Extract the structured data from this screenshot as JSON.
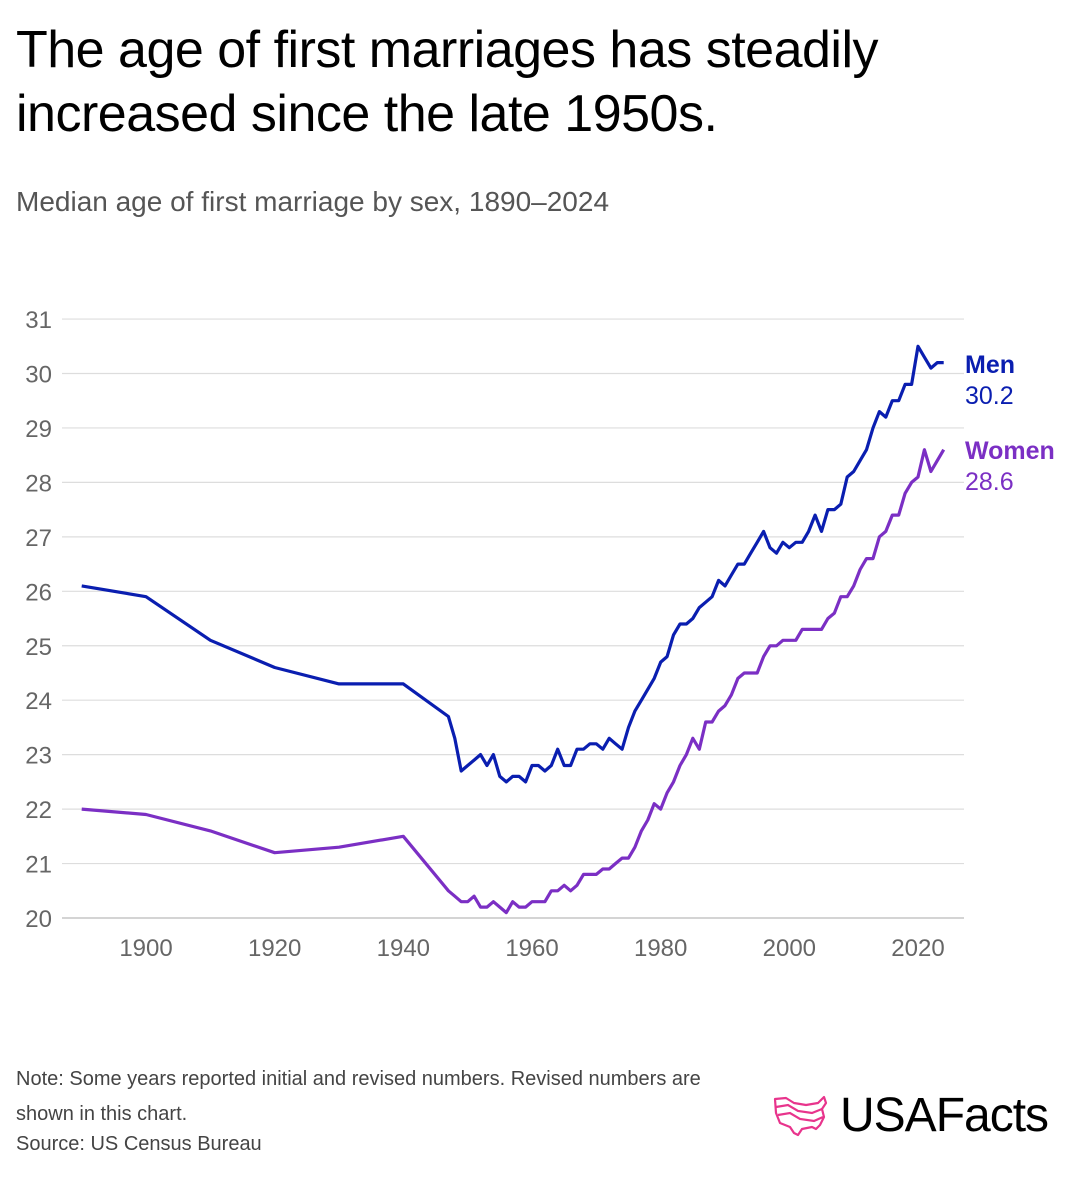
{
  "header": {
    "title": "The age of first marriages has steadily increased since the late 1950s.",
    "subtitle": "Median age of first marriage by sex, 1890–2024"
  },
  "footer": {
    "note": "Note: Some years reported initial and revised numbers. Revised numbers are shown in this chart.",
    "source": "Source: US Census Bureau",
    "logo_text": "USAFacts"
  },
  "colors": {
    "men": "#0a1eb0",
    "women": "#7b2fc4",
    "grid": "#dddddd",
    "logo_accent": "#e8348c"
  },
  "chart_data": {
    "type": "line",
    "title": "Median age of first marriage by sex, 1890–2024",
    "xlabel": "",
    "ylabel": "",
    "xlim": [
      1890,
      2024
    ],
    "ylim": [
      20,
      31
    ],
    "x_ticks": [
      1900,
      1920,
      1940,
      1960,
      1980,
      2000,
      2020
    ],
    "y_ticks": [
      20,
      21,
      22,
      23,
      24,
      25,
      26,
      27,
      28,
      29,
      30,
      31
    ],
    "grid": true,
    "legend": "end-of-line labels",
    "series": [
      {
        "name": "Men",
        "end_label": "30.2",
        "color": "#0a1eb0",
        "x": [
          1890,
          1900,
          1910,
          1920,
          1930,
          1940,
          1947,
          1948,
          1949,
          1950,
          1951,
          1952,
          1953,
          1954,
          1955,
          1956,
          1957,
          1958,
          1959,
          1960,
          1961,
          1962,
          1963,
          1964,
          1965,
          1966,
          1967,
          1968,
          1969,
          1970,
          1971,
          1972,
          1973,
          1974,
          1975,
          1976,
          1977,
          1978,
          1979,
          1980,
          1981,
          1982,
          1983,
          1984,
          1985,
          1986,
          1987,
          1988,
          1989,
          1990,
          1991,
          1992,
          1993,
          1994,
          1995,
          1996,
          1997,
          1998,
          1999,
          2000,
          2001,
          2002,
          2003,
          2004,
          2005,
          2006,
          2007,
          2008,
          2009,
          2010,
          2011,
          2012,
          2013,
          2014,
          2015,
          2016,
          2017,
          2018,
          2019,
          2020,
          2021,
          2022,
          2023,
          2024
        ],
        "values": [
          26.1,
          25.9,
          25.1,
          24.6,
          24.3,
          24.3,
          23.7,
          23.3,
          22.7,
          22.8,
          22.9,
          23.0,
          22.8,
          23.0,
          22.6,
          22.5,
          22.6,
          22.6,
          22.5,
          22.8,
          22.8,
          22.7,
          22.8,
          23.1,
          22.8,
          22.8,
          23.1,
          23.1,
          23.2,
          23.2,
          23.1,
          23.3,
          23.2,
          23.1,
          23.5,
          23.8,
          24.0,
          24.2,
          24.4,
          24.7,
          24.8,
          25.2,
          25.4,
          25.4,
          25.5,
          25.7,
          25.8,
          25.9,
          26.2,
          26.1,
          26.3,
          26.5,
          26.5,
          26.7,
          26.9,
          27.1,
          26.8,
          26.7,
          26.9,
          26.8,
          26.9,
          26.9,
          27.1,
          27.4,
          27.1,
          27.5,
          27.5,
          27.6,
          28.1,
          28.2,
          28.4,
          28.6,
          29.0,
          29.3,
          29.2,
          29.5,
          29.5,
          29.8,
          29.8,
          30.5,
          30.3,
          30.1,
          30.2,
          30.2
        ]
      },
      {
        "name": "Women",
        "end_label": "28.6",
        "color": "#7b2fc4",
        "x": [
          1890,
          1900,
          1910,
          1920,
          1930,
          1940,
          1947,
          1948,
          1949,
          1950,
          1951,
          1952,
          1953,
          1954,
          1955,
          1956,
          1957,
          1958,
          1959,
          1960,
          1961,
          1962,
          1963,
          1964,
          1965,
          1966,
          1967,
          1968,
          1969,
          1970,
          1971,
          1972,
          1973,
          1974,
          1975,
          1976,
          1977,
          1978,
          1979,
          1980,
          1981,
          1982,
          1983,
          1984,
          1985,
          1986,
          1987,
          1988,
          1989,
          1990,
          1991,
          1992,
          1993,
          1994,
          1995,
          1996,
          1997,
          1998,
          1999,
          2000,
          2001,
          2002,
          2003,
          2004,
          2005,
          2006,
          2007,
          2008,
          2009,
          2010,
          2011,
          2012,
          2013,
          2014,
          2015,
          2016,
          2017,
          2018,
          2019,
          2020,
          2021,
          2022,
          2023,
          2024
        ],
        "values": [
          22.0,
          21.9,
          21.6,
          21.2,
          21.3,
          21.5,
          20.5,
          20.4,
          20.3,
          20.3,
          20.4,
          20.2,
          20.2,
          20.3,
          20.2,
          20.1,
          20.3,
          20.2,
          20.2,
          20.3,
          20.3,
          20.3,
          20.5,
          20.5,
          20.6,
          20.5,
          20.6,
          20.8,
          20.8,
          20.8,
          20.9,
          20.9,
          21.0,
          21.1,
          21.1,
          21.3,
          21.6,
          21.8,
          22.1,
          22.0,
          22.3,
          22.5,
          22.8,
          23.0,
          23.3,
          23.1,
          23.6,
          23.6,
          23.8,
          23.9,
          24.1,
          24.4,
          24.5,
          24.5,
          24.5,
          24.8,
          25.0,
          25.0,
          25.1,
          25.1,
          25.1,
          25.3,
          25.3,
          25.3,
          25.3,
          25.5,
          25.6,
          25.9,
          25.9,
          26.1,
          26.4,
          26.6,
          26.6,
          27.0,
          27.1,
          27.4,
          27.4,
          27.8,
          28.0,
          28.1,
          28.6,
          28.2,
          28.4,
          28.6
        ]
      }
    ]
  }
}
